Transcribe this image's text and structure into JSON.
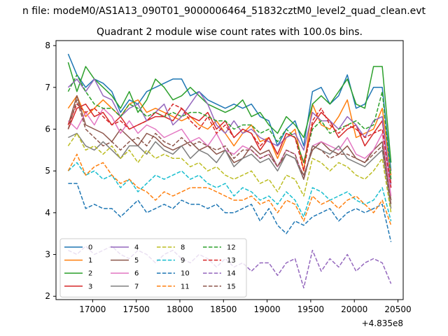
{
  "suptitle": "n file: modeM0/AS1A13_090T01_9000006464_51832cztM0_level2_quad_clean.evt",
  "chart_data": {
    "type": "line",
    "title": "Quadrant 2 module wise count rates with 100.0s bins.",
    "xlabel": "",
    "ylabel": "",
    "x_offset_label": "+4.835e8",
    "xlim": [
      16580,
      20560
    ],
    "ylim": [
      1.92,
      8.12
    ],
    "xticks": [
      17000,
      17500,
      18000,
      18500,
      19000,
      19500,
      20000,
      20500
    ],
    "yticks": [
      2,
      3,
      4,
      5,
      6,
      7,
      8
    ],
    "grid": false,
    "legend": {
      "position": "lower-left",
      "columns": 4
    },
    "x": [
      16720,
      16820,
      16920,
      17020,
      17120,
      17220,
      17320,
      17420,
      17520,
      17620,
      17720,
      17820,
      17920,
      18020,
      18120,
      18220,
      18320,
      18420,
      18520,
      18620,
      18720,
      18820,
      18920,
      19020,
      19120,
      19220,
      19320,
      19420,
      19520,
      19620,
      19720,
      19820,
      19920,
      20020,
      20120,
      20220,
      20320,
      20420
    ],
    "series": [
      {
        "name": "0",
        "color": "#1f77b4",
        "style": "solid",
        "values": [
          7.8,
          7.3,
          7.0,
          7.2,
          7.1,
          6.9,
          6.4,
          6.7,
          6.6,
          6.9,
          7.0,
          7.1,
          7.2,
          7.2,
          6.8,
          6.9,
          6.7,
          6.6,
          6.5,
          6.6,
          6.5,
          6.6,
          6.3,
          6.2,
          5.6,
          6.0,
          6.2,
          5.6,
          6.9,
          7.0,
          6.6,
          6.8,
          7.3,
          6.5,
          6.6,
          7.0,
          7.0,
          5.0
        ]
      },
      {
        "name": "1",
        "color": "#ff7f0e",
        "style": "solid",
        "values": [
          6.5,
          6.8,
          6.3,
          6.5,
          6.7,
          6.5,
          6.3,
          6.6,
          6.7,
          6.4,
          6.5,
          6.4,
          6.3,
          6.2,
          6.3,
          6.1,
          6.0,
          6.2,
          5.9,
          5.6,
          5.9,
          6.1,
          5.7,
          5.8,
          5.3,
          5.8,
          6.0,
          5.0,
          6.6,
          6.1,
          6.0,
          6.3,
          6.7,
          5.8,
          5.9,
          6.0,
          6.5,
          4.9
        ]
      },
      {
        "name": "2",
        "color": "#2ca02c",
        "style": "solid",
        "values": [
          7.6,
          6.9,
          7.5,
          7.2,
          7.0,
          6.8,
          6.5,
          6.9,
          6.4,
          6.7,
          7.2,
          7.0,
          6.7,
          6.8,
          7.0,
          6.8,
          6.6,
          6.5,
          6.4,
          6.5,
          6.7,
          6.3,
          6.4,
          6.1,
          5.9,
          6.3,
          6.1,
          5.8,
          6.6,
          6.8,
          6.6,
          6.9,
          7.2,
          6.6,
          6.5,
          7.5,
          7.5,
          5.2
        ]
      },
      {
        "name": "3",
        "color": "#d62728",
        "style": "solid",
        "values": [
          6.0,
          6.5,
          6.6,
          6.3,
          6.4,
          6.1,
          6.3,
          6.0,
          6.1,
          6.2,
          6.3,
          6.3,
          6.2,
          6.5,
          6.3,
          6.2,
          6.4,
          6.0,
          6.2,
          5.8,
          6.0,
          5.9,
          5.5,
          5.8,
          5.4,
          5.9,
          5.8,
          5.2,
          6.1,
          6.4,
          6.2,
          5.8,
          6.0,
          6.1,
          5.6,
          5.9,
          6.2,
          4.7
        ]
      },
      {
        "name": "4",
        "color": "#9467bd",
        "style": "solid",
        "values": [
          7.0,
          7.2,
          6.9,
          7.2,
          6.8,
          6.7,
          6.3,
          6.5,
          6.6,
          6.2,
          6.4,
          6.6,
          6.1,
          6.3,
          6.6,
          6.9,
          6.6,
          6.1,
          5.9,
          6.2,
          5.9,
          6.0,
          5.8,
          5.7,
          5.6,
          5.8,
          5.9,
          5.5,
          6.4,
          6.2,
          6.2,
          6.0,
          6.3,
          6.1,
          5.8,
          6.2,
          6.3,
          4.6
        ]
      },
      {
        "name": "5",
        "color": "#8c564b",
        "style": "solid",
        "values": [
          6.1,
          6.8,
          6.1,
          6.0,
          5.9,
          5.7,
          6.0,
          5.8,
          5.6,
          5.9,
          5.8,
          5.6,
          5.5,
          5.6,
          5.7,
          5.5,
          5.6,
          5.4,
          5.5,
          5.2,
          5.3,
          5.6,
          5.4,
          5.5,
          5.1,
          5.4,
          5.3,
          4.9,
          5.5,
          5.7,
          5.5,
          5.4,
          5.6,
          5.3,
          5.2,
          5.5,
          5.7,
          4.3
        ]
      },
      {
        "name": "6",
        "color": "#e377c2",
        "style": "solid",
        "values": [
          6.2,
          6.0,
          6.4,
          6.1,
          6.5,
          6.3,
          5.9,
          6.2,
          5.9,
          6.1,
          6.0,
          5.8,
          5.9,
          6.0,
          5.7,
          5.8,
          5.6,
          5.9,
          5.5,
          5.4,
          5.6,
          5.5,
          5.3,
          5.4,
          5.1,
          5.5,
          5.4,
          4.8,
          5.6,
          5.7,
          5.6,
          5.5,
          5.8,
          5.4,
          5.3,
          5.5,
          5.9,
          4.4
        ]
      },
      {
        "name": "7",
        "color": "#7f7f7f",
        "style": "solid",
        "values": [
          5.8,
          5.9,
          5.6,
          5.5,
          5.7,
          5.5,
          5.3,
          5.6,
          5.6,
          5.4,
          5.7,
          5.5,
          5.4,
          5.6,
          5.3,
          5.5,
          5.4,
          5.2,
          5.5,
          5.1,
          5.3,
          5.4,
          5.2,
          5.3,
          5.0,
          5.4,
          5.3,
          4.8,
          5.6,
          5.5,
          5.4,
          5.6,
          5.3,
          5.2,
          5.1,
          5.3,
          5.5,
          4.1
        ]
      },
      {
        "name": "8",
        "color": "#bcbd22",
        "style": "dashed",
        "values": [
          5.6,
          5.9,
          5.5,
          5.6,
          5.4,
          5.6,
          5.3,
          5.5,
          5.2,
          5.5,
          5.3,
          5.4,
          5.3,
          5.3,
          5.1,
          5.2,
          5.0,
          5.1,
          4.9,
          4.8,
          4.9,
          5.0,
          4.7,
          4.8,
          4.5,
          4.9,
          4.8,
          4.4,
          5.3,
          5.2,
          5.0,
          5.2,
          5.1,
          4.9,
          4.8,
          5.0,
          5.3,
          4.0
        ]
      },
      {
        "name": "9",
        "color": "#17becf",
        "style": "dashed",
        "values": [
          5.0,
          5.2,
          4.9,
          5.0,
          4.8,
          4.9,
          4.6,
          4.8,
          4.5,
          4.7,
          4.9,
          4.8,
          4.9,
          5.0,
          4.8,
          4.9,
          4.7,
          4.6,
          4.7,
          4.4,
          4.6,
          4.5,
          4.3,
          4.4,
          4.2,
          4.5,
          4.3,
          3.9,
          4.6,
          4.5,
          4.3,
          4.4,
          4.5,
          4.3,
          4.2,
          4.3,
          4.6,
          3.8
        ]
      },
      {
        "name": "10",
        "color": "#1f77b4",
        "style": "dashed",
        "values": [
          4.7,
          4.7,
          4.1,
          4.2,
          4.1,
          4.1,
          3.9,
          4.1,
          4.3,
          4.0,
          4.1,
          4.2,
          4.1,
          4.3,
          4.2,
          4.2,
          4.1,
          4.2,
          4.0,
          4.0,
          4.1,
          4.2,
          3.8,
          4.1,
          3.7,
          3.5,
          3.8,
          3.7,
          3.9,
          4.0,
          4.1,
          3.8,
          4.0,
          4.1,
          4.0,
          4.1,
          4.2,
          3.3
        ]
      },
      {
        "name": "11",
        "color": "#ff7f0e",
        "style": "dashed",
        "values": [
          5.0,
          5.4,
          4.9,
          5.1,
          5.2,
          4.9,
          4.7,
          4.8,
          4.6,
          4.5,
          4.3,
          4.5,
          4.4,
          4.5,
          4.6,
          4.6,
          4.6,
          4.5,
          4.4,
          4.3,
          4.3,
          4.4,
          4.2,
          4.3,
          4.0,
          4.3,
          4.2,
          3.8,
          4.4,
          4.2,
          4.3,
          4.1,
          4.3,
          4.4,
          4.2,
          4.0,
          4.3,
          3.7
        ]
      },
      {
        "name": "12",
        "color": "#2ca02c",
        "style": "dashed",
        "values": [
          6.9,
          7.3,
          6.9,
          6.6,
          6.5,
          6.5,
          6.3,
          6.6,
          6.5,
          6.3,
          6.4,
          6.3,
          6.4,
          6.3,
          6.4,
          6.4,
          6.3,
          6.2,
          6.2,
          6.0,
          6.1,
          6.1,
          5.9,
          6.0,
          5.7,
          6.0,
          5.8,
          5.2,
          6.0,
          6.2,
          5.9,
          6.0,
          6.1,
          6.2,
          6.0,
          6.1,
          6.9,
          4.8
        ]
      },
      {
        "name": "13",
        "color": "#d62728",
        "style": "dashed",
        "values": [
          6.1,
          6.6,
          6.4,
          6.5,
          6.3,
          6.1,
          6.2,
          6.0,
          6.1,
          6.2,
          6.4,
          6.3,
          6.6,
          6.5,
          6.2,
          6.0,
          6.3,
          5.9,
          6.1,
          5.8,
          6.0,
          5.9,
          5.6,
          5.8,
          5.4,
          5.9,
          5.8,
          5.0,
          6.2,
          6.5,
          6.1,
          5.9,
          6.1,
          6.0,
          5.8,
          5.9,
          6.0,
          4.6
        ]
      },
      {
        "name": "14",
        "color": "#9467bd",
        "style": "dashed",
        "values": [
          3.1,
          3.0,
          3.2,
          3.0,
          3.1,
          3.2,
          3.0,
          2.9,
          3.1,
          3.0,
          2.8,
          3.0,
          3.1,
          2.9,
          2.8,
          3.0,
          2.9,
          2.7,
          2.9,
          2.7,
          2.8,
          2.6,
          2.8,
          2.8,
          2.5,
          2.8,
          2.9,
          2.2,
          3.1,
          2.6,
          2.9,
          2.7,
          3.0,
          2.6,
          2.8,
          2.9,
          2.8,
          2.3
        ]
      },
      {
        "name": "15",
        "color": "#8c564b",
        "style": "dashed",
        "values": [
          6.0,
          6.7,
          6.0,
          5.8,
          5.6,
          5.7,
          5.5,
          5.7,
          5.8,
          5.6,
          5.9,
          5.7,
          5.6,
          5.8,
          5.6,
          5.7,
          5.6,
          5.5,
          5.6,
          5.3,
          5.5,
          5.5,
          5.3,
          5.4,
          5.1,
          5.5,
          5.4,
          4.8,
          5.6,
          5.5,
          5.3,
          5.4,
          5.4,
          5.3,
          5.2,
          5.4,
          5.6,
          4.2
        ]
      }
    ]
  }
}
